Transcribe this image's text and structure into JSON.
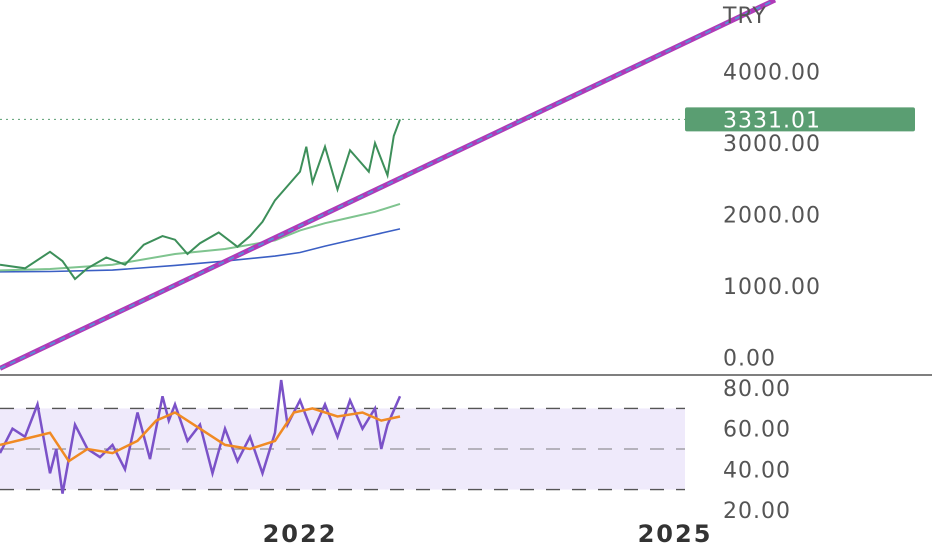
{
  "chart_data": [
    {
      "type": "line",
      "panel": "price",
      "currency_label": "TRY",
      "y_ticks": [
        "4000.00",
        "3000.00",
        "2000.00",
        "1000.00",
        "0.00"
      ],
      "y_tick_values": [
        4000,
        3000,
        2000,
        1000,
        0
      ],
      "ylim": [
        -200,
        5000
      ],
      "x_ticks": [
        "2022",
        "2025"
      ],
      "x_tick_values": [
        2022,
        2025
      ],
      "xlim": [
        2019.6,
        2027.0
      ],
      "last_price": {
        "label": "3331.01",
        "value": 3331.01,
        "color": "#5a9e72"
      },
      "price_series": {
        "color": "#3d8f5a",
        "x": [
          2019.6,
          2019.8,
          2020.0,
          2020.1,
          2020.2,
          2020.3,
          2020.45,
          2020.6,
          2020.75,
          2020.9,
          2021.0,
          2021.1,
          2021.2,
          2021.35,
          2021.5,
          2021.6,
          2021.7,
          2021.8,
          2021.9,
          2022.0,
          2022.05,
          2022.1,
          2022.15,
          2022.2,
          2022.3,
          2022.4,
          2022.45,
          2022.55,
          2022.6,
          2022.7,
          2022.75,
          2022.8
        ],
        "values": [
          1300,
          1250,
          1480,
          1350,
          1100,
          1250,
          1400,
          1300,
          1580,
          1700,
          1650,
          1450,
          1600,
          1750,
          1550,
          1700,
          1900,
          2200,
          2400,
          2600,
          2950,
          2450,
          2700,
          2950,
          2350,
          2900,
          2800,
          2600,
          3000,
          2550,
          3100,
          3331
        ]
      },
      "ma_fast": {
        "color": "#7fc48f",
        "x": [
          2019.6,
          2020.0,
          2020.5,
          2021.0,
          2021.4,
          2021.8,
          2022.0,
          2022.2,
          2022.4,
          2022.6,
          2022.8
        ],
        "values": [
          1220,
          1240,
          1300,
          1450,
          1520,
          1640,
          1780,
          1880,
          1960,
          2040,
          2150
        ]
      },
      "ma_slow": {
        "color": "#3b5fc4",
        "x": [
          2019.6,
          2020.0,
          2020.5,
          2021.0,
          2021.4,
          2021.8,
          2022.0,
          2022.2,
          2022.4,
          2022.6,
          2022.8
        ],
        "values": [
          1200,
          1205,
          1225,
          1290,
          1350,
          1420,
          1470,
          1560,
          1640,
          1720,
          1800
        ]
      },
      "trend_line": {
        "color_outer": "#b03ab8",
        "color_inner": "#5b8bd6",
        "x": [
          2019.6,
          2025.8
        ],
        "values": [
          -150,
          5000
        ]
      },
      "grid": false
    },
    {
      "type": "line",
      "panel": "rsi",
      "y_ticks": [
        "80.00",
        "60.00",
        "40.00",
        "20.00"
      ],
      "y_tick_values": [
        80,
        60,
        40,
        20
      ],
      "ylim": [
        15,
        85
      ],
      "band": {
        "upper": 70,
        "lower": 30,
        "fill": "#efeafb"
      },
      "dashed_levels": [
        70,
        50,
        30
      ],
      "rsi_series": {
        "color": "#7b52c8",
        "x": [
          2019.6,
          2019.7,
          2019.8,
          2019.9,
          2020.0,
          2020.05,
          2020.1,
          2020.2,
          2020.3,
          2020.4,
          2020.5,
          2020.6,
          2020.7,
          2020.8,
          2020.9,
          2020.95,
          2021.0,
          2021.1,
          2021.2,
          2021.3,
          2021.4,
          2021.5,
          2021.6,
          2021.7,
          2021.8,
          2021.85,
          2021.9,
          2022.0,
          2022.1,
          2022.2,
          2022.3,
          2022.4,
          2022.5,
          2022.6,
          2022.65,
          2022.7,
          2022.8
        ],
        "values": [
          48,
          60,
          56,
          72,
          38,
          50,
          28,
          62,
          50,
          46,
          52,
          40,
          68,
          45,
          76,
          64,
          72,
          54,
          62,
          38,
          60,
          44,
          56,
          38,
          58,
          84,
          62,
          74,
          58,
          72,
          56,
          74,
          60,
          70,
          50,
          62,
          76
        ]
      },
      "signal_series": {
        "color": "#f08a24",
        "x": [
          2019.6,
          2019.8,
          2020.0,
          2020.15,
          2020.3,
          2020.5,
          2020.7,
          2020.85,
          2021.0,
          2021.2,
          2021.4,
          2021.6,
          2021.8,
          2021.95,
          2022.1,
          2022.3,
          2022.5,
          2022.65,
          2022.8
        ],
        "values": [
          52,
          55,
          58,
          44,
          50,
          48,
          54,
          64,
          68,
          60,
          52,
          50,
          54,
          68,
          70,
          66,
          68,
          64,
          66
        ]
      }
    }
  ]
}
